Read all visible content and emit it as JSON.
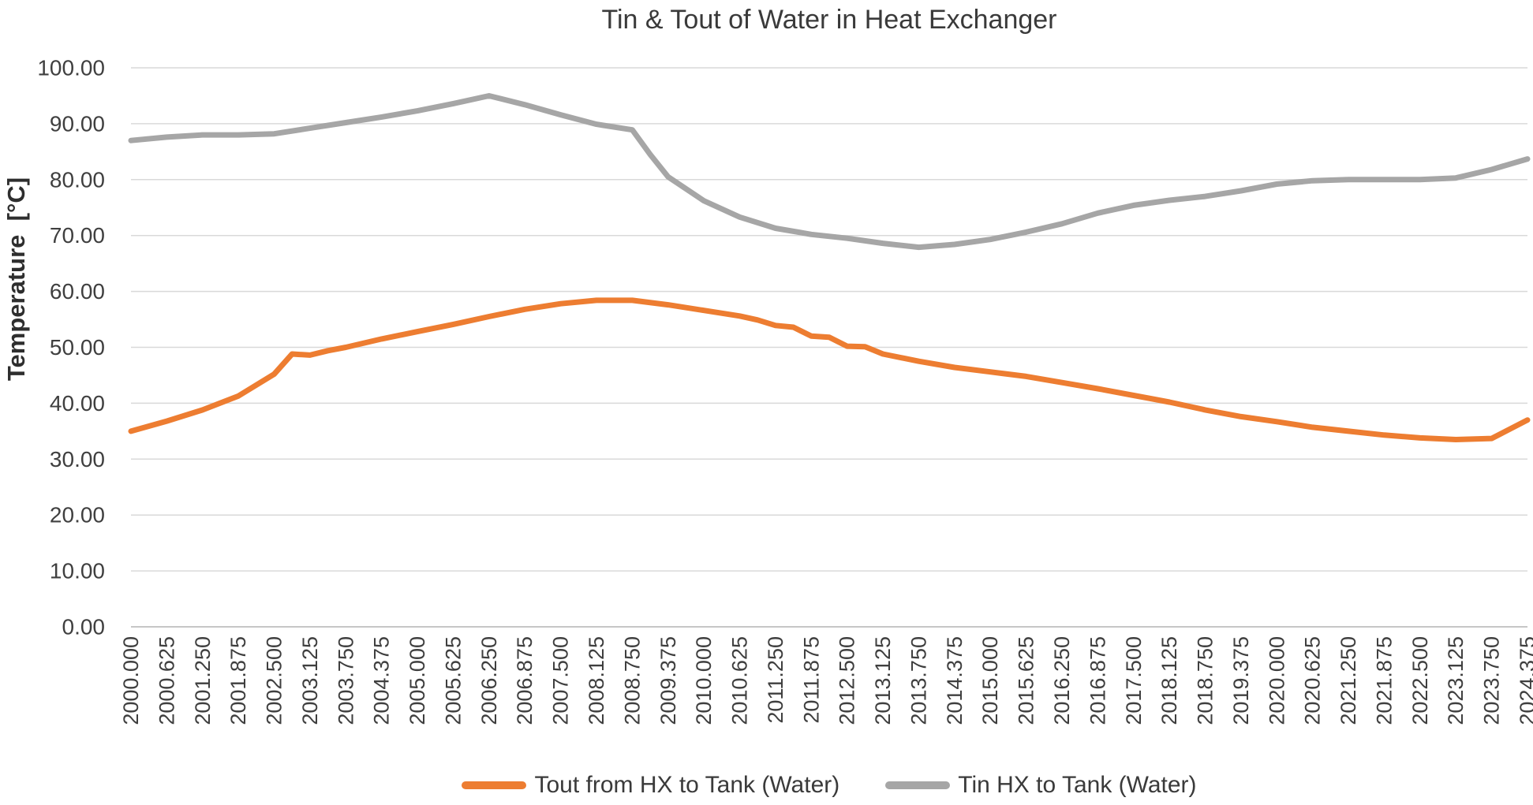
{
  "title": "Tin & Tout of Water in Heat Exchanger",
  "y_axis": {
    "title": "Temperature  [°C]",
    "tick_labels": [
      "100.00",
      "90.00",
      "80.00",
      "70.00",
      "60.00",
      "50.00",
      "40.00",
      "30.00",
      "20.00",
      "10.00",
      "0.00"
    ]
  },
  "x_axis": {
    "tick_labels": [
      "2000.000",
      "2000.625",
      "2001.250",
      "2001.875",
      "2002.500",
      "2003.125",
      "2003.750",
      "2004.375",
      "2005.000",
      "2005.625",
      "2006.250",
      "2006.875",
      "2007.500",
      "2008.125",
      "2008.750",
      "2009.375",
      "2010.000",
      "2010.625",
      "2011.250",
      "2011.875",
      "2012.500",
      "2013.125",
      "2013.750",
      "2014.375",
      "2015.000",
      "2015.625",
      "2016.250",
      "2016.875",
      "2017.500",
      "2018.125",
      "2018.750",
      "2019.375",
      "2020.000",
      "2020.625",
      "2021.250",
      "2021.875",
      "2022.500",
      "2023.125",
      "2023.750",
      "2024.375"
    ]
  },
  "colors": {
    "tout_series": "#ED7D31",
    "tin_series": "#A6A6A6",
    "gridline": "#D9D9D9",
    "axis_line": "#C6C6C6",
    "tick_text": "#3f3f3f"
  },
  "chart_data": {
    "type": "line",
    "title": "Tin & Tout of Water in Heat Exchanger",
    "xlabel": "",
    "ylabel": "Temperature [°C]",
    "x_range": [
      2000.0,
      2024.375
    ],
    "y_range": [
      0,
      100
    ],
    "y_tick_step": 10,
    "grid": "horizontal",
    "legend_position": "bottom",
    "x_tick_interval": 0.625,
    "series": [
      {
        "name": "Tout from HX to Tank (Water)",
        "color": "#ED7D31",
        "points": [
          [
            2000.0,
            35.0
          ],
          [
            2000.625,
            36.8
          ],
          [
            2001.25,
            38.8
          ],
          [
            2001.875,
            41.3
          ],
          [
            2002.5,
            45.2
          ],
          [
            2002.8125,
            48.8
          ],
          [
            2003.125,
            48.6
          ],
          [
            2003.4375,
            49.4
          ],
          [
            2003.75,
            50.0
          ],
          [
            2004.375,
            51.5
          ],
          [
            2005.0,
            52.8
          ],
          [
            2005.625,
            54.1
          ],
          [
            2006.25,
            55.5
          ],
          [
            2006.875,
            56.8
          ],
          [
            2007.5,
            57.8
          ],
          [
            2008.125,
            58.4
          ],
          [
            2008.75,
            58.4
          ],
          [
            2009.375,
            57.6
          ],
          [
            2010.0,
            56.6
          ],
          [
            2010.625,
            55.6
          ],
          [
            2010.9375,
            54.9
          ],
          [
            2011.25,
            53.9
          ],
          [
            2011.5625,
            53.6
          ],
          [
            2011.875,
            52.0
          ],
          [
            2012.1875,
            51.8
          ],
          [
            2012.5,
            50.2
          ],
          [
            2012.8125,
            50.1
          ],
          [
            2013.125,
            48.8
          ],
          [
            2013.75,
            47.5
          ],
          [
            2014.375,
            46.4
          ],
          [
            2015.0,
            45.6
          ],
          [
            2015.625,
            44.8
          ],
          [
            2016.25,
            43.7
          ],
          [
            2016.875,
            42.6
          ],
          [
            2017.5,
            41.4
          ],
          [
            2018.125,
            40.2
          ],
          [
            2018.75,
            38.8
          ],
          [
            2019.375,
            37.6
          ],
          [
            2020.0,
            36.7
          ],
          [
            2020.625,
            35.7
          ],
          [
            2021.25,
            35.0
          ],
          [
            2021.875,
            34.3
          ],
          [
            2022.5,
            33.8
          ],
          [
            2023.125,
            33.5
          ],
          [
            2023.75,
            33.7
          ],
          [
            2024.375,
            37.0
          ]
        ]
      },
      {
        "name": "Tin HX to Tank (Water)",
        "color": "#A6A6A6",
        "points": [
          [
            2000.0,
            87.0
          ],
          [
            2000.625,
            87.6
          ],
          [
            2001.25,
            88.0
          ],
          [
            2001.875,
            88.0
          ],
          [
            2002.5,
            88.2
          ],
          [
            2003.125,
            89.2
          ],
          [
            2003.75,
            90.2
          ],
          [
            2004.375,
            91.2
          ],
          [
            2005.0,
            92.3
          ],
          [
            2005.625,
            93.6
          ],
          [
            2006.25,
            95.0
          ],
          [
            2006.875,
            93.4
          ],
          [
            2007.5,
            91.6
          ],
          [
            2008.125,
            89.9
          ],
          [
            2008.75,
            88.9
          ],
          [
            2009.0625,
            84.5
          ],
          [
            2009.375,
            80.5
          ],
          [
            2010.0,
            76.2
          ],
          [
            2010.625,
            73.3
          ],
          [
            2011.25,
            71.3
          ],
          [
            2011.875,
            70.2
          ],
          [
            2012.5,
            69.5
          ],
          [
            2013.125,
            68.6
          ],
          [
            2013.75,
            67.9
          ],
          [
            2014.375,
            68.4
          ],
          [
            2015.0,
            69.3
          ],
          [
            2015.625,
            70.6
          ],
          [
            2016.25,
            72.1
          ],
          [
            2016.875,
            74.0
          ],
          [
            2017.5,
            75.4
          ],
          [
            2018.125,
            76.3
          ],
          [
            2018.75,
            77.0
          ],
          [
            2019.375,
            78.0
          ],
          [
            2020.0,
            79.2
          ],
          [
            2020.625,
            79.8
          ],
          [
            2021.25,
            80.0
          ],
          [
            2021.875,
            80.0
          ],
          [
            2022.5,
            80.0
          ],
          [
            2023.125,
            80.3
          ],
          [
            2023.75,
            81.8
          ],
          [
            2024.375,
            83.7
          ]
        ]
      }
    ]
  }
}
